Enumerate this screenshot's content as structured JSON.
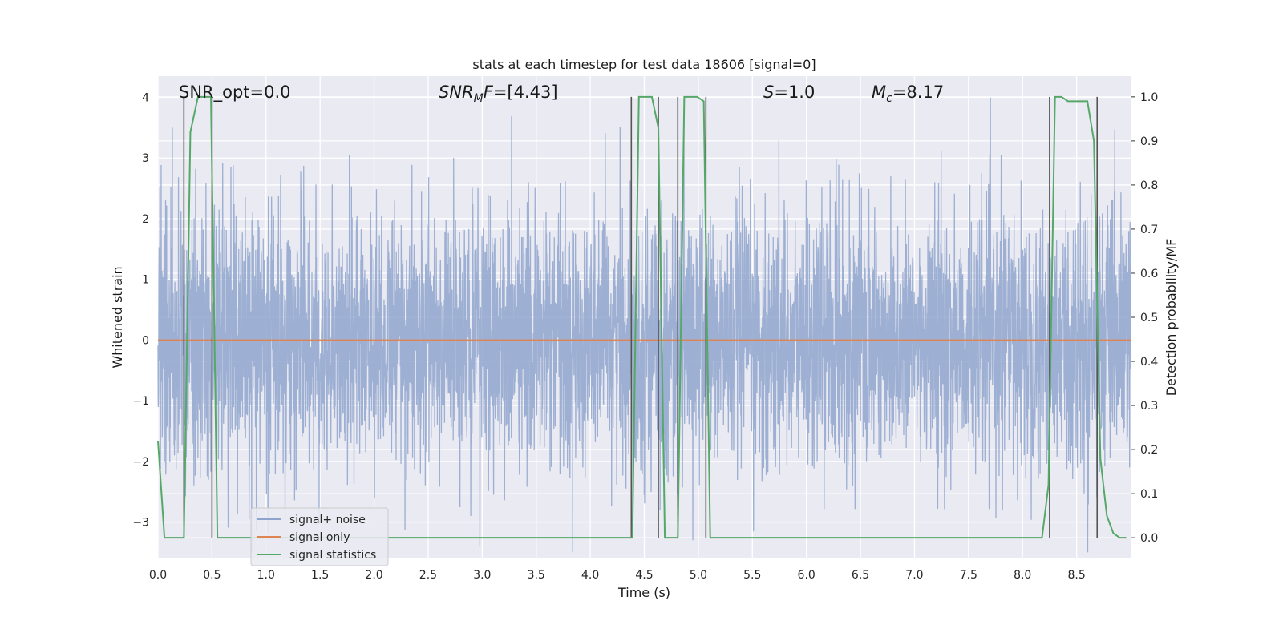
{
  "chart_data": {
    "type": "line",
    "title": "stats at each timestep for test data 18606 [signal=0]",
    "xlabel": "Time (s)",
    "ylabel_left": "Whitened strain",
    "ylabel_right": "Detection probability/MF",
    "xlim": [
      0.0,
      9.0
    ],
    "ylim_left": [
      -3.6,
      4.35
    ],
    "ylim_right": [
      -0.047,
      1.047
    ],
    "x_ticks": [
      "0.0",
      "0.5",
      "1.0",
      "1.5",
      "2.0",
      "2.5",
      "3.0",
      "3.5",
      "4.0",
      "4.5",
      "5.0",
      "5.5",
      "6.0",
      "6.5",
      "7.0",
      "7.5",
      "8.0",
      "8.5"
    ],
    "y_ticks_left": [
      "−3",
      "−2",
      "−1",
      "0",
      "1",
      "2",
      "3",
      "4"
    ],
    "y_ticks_right": [
      "0.0",
      "0.1",
      "0.2",
      "0.3",
      "0.4",
      "0.5",
      "0.6",
      "0.7",
      "0.8",
      "0.9",
      "1.0"
    ],
    "annotations": {
      "snr_opt": "SNR_opt=0.0",
      "snr_mf_base": "SNR",
      "snr_mf_sub": "M",
      "snr_mf_tail": "F",
      "snr_mf_value": "=[4.43]",
      "s_symbol": "S",
      "s_value": "=1.0",
      "mc_base": "M",
      "mc_sub": "c",
      "mc_value": "=8.17"
    },
    "legend": {
      "location": "lower-left",
      "entries": [
        {
          "label": "signal+ noise",
          "color": "#8fa4cc"
        },
        {
          "label": "signal only",
          "color": "#dd8452"
        },
        {
          "label": "signal statistics",
          "color": "#55a868"
        }
      ]
    },
    "series": [
      {
        "name": "signal+ noise",
        "color": "#8fa4cc",
        "axis": "left",
        "style": "dense noise trace, roughly Gaussian, amplitude about ±2 with peaks to ±4",
        "n_points": 4600,
        "seed": 18606
      },
      {
        "name": "signal only",
        "color": "#dd8452",
        "axis": "left",
        "x": [
          0.0,
          9.0
        ],
        "y": [
          0.0,
          0.0
        ]
      },
      {
        "name": "signal statistics",
        "color": "#55a868",
        "axis": "right",
        "x": [
          0.0,
          0.06,
          0.12,
          0.18,
          0.24,
          0.3,
          0.37,
          0.43,
          0.49,
          0.55,
          0.61,
          0.67,
          0.73,
          4.33,
          4.39,
          4.45,
          4.51,
          4.57,
          4.63,
          4.69,
          4.75,
          4.81,
          4.87,
          4.93,
          4.99,
          5.05,
          5.11,
          5.17,
          5.23,
          5.29,
          5.35,
          8.18,
          8.24,
          8.3,
          8.36,
          8.42,
          8.48,
          8.54,
          8.6,
          8.66,
          8.72,
          8.78,
          8.84,
          8.9,
          8.96
        ],
        "y": [
          0.22,
          0.0,
          0.0,
          0.0,
          0.0,
          0.92,
          1.0,
          1.0,
          1.0,
          0.0,
          0.0,
          0.0,
          0.0,
          0.0,
          0.0,
          1.0,
          1.0,
          1.0,
          0.93,
          0.0,
          0.0,
          0.0,
          1.0,
          1.0,
          1.0,
          0.99,
          0.0,
          0.0,
          0.0,
          0.0,
          0.0,
          0.0,
          0.12,
          1.0,
          1.0,
          0.99,
          0.99,
          0.99,
          0.99,
          0.9,
          0.18,
          0.05,
          0.01,
          0.0,
          0.0
        ]
      }
    ],
    "vertical_lines": {
      "color": "#555555",
      "x": [
        0.24,
        0.5,
        4.38,
        4.63,
        4.81,
        5.07,
        8.25,
        8.69
      ],
      "y_range_right": [
        0.0,
        1.0
      ]
    }
  }
}
